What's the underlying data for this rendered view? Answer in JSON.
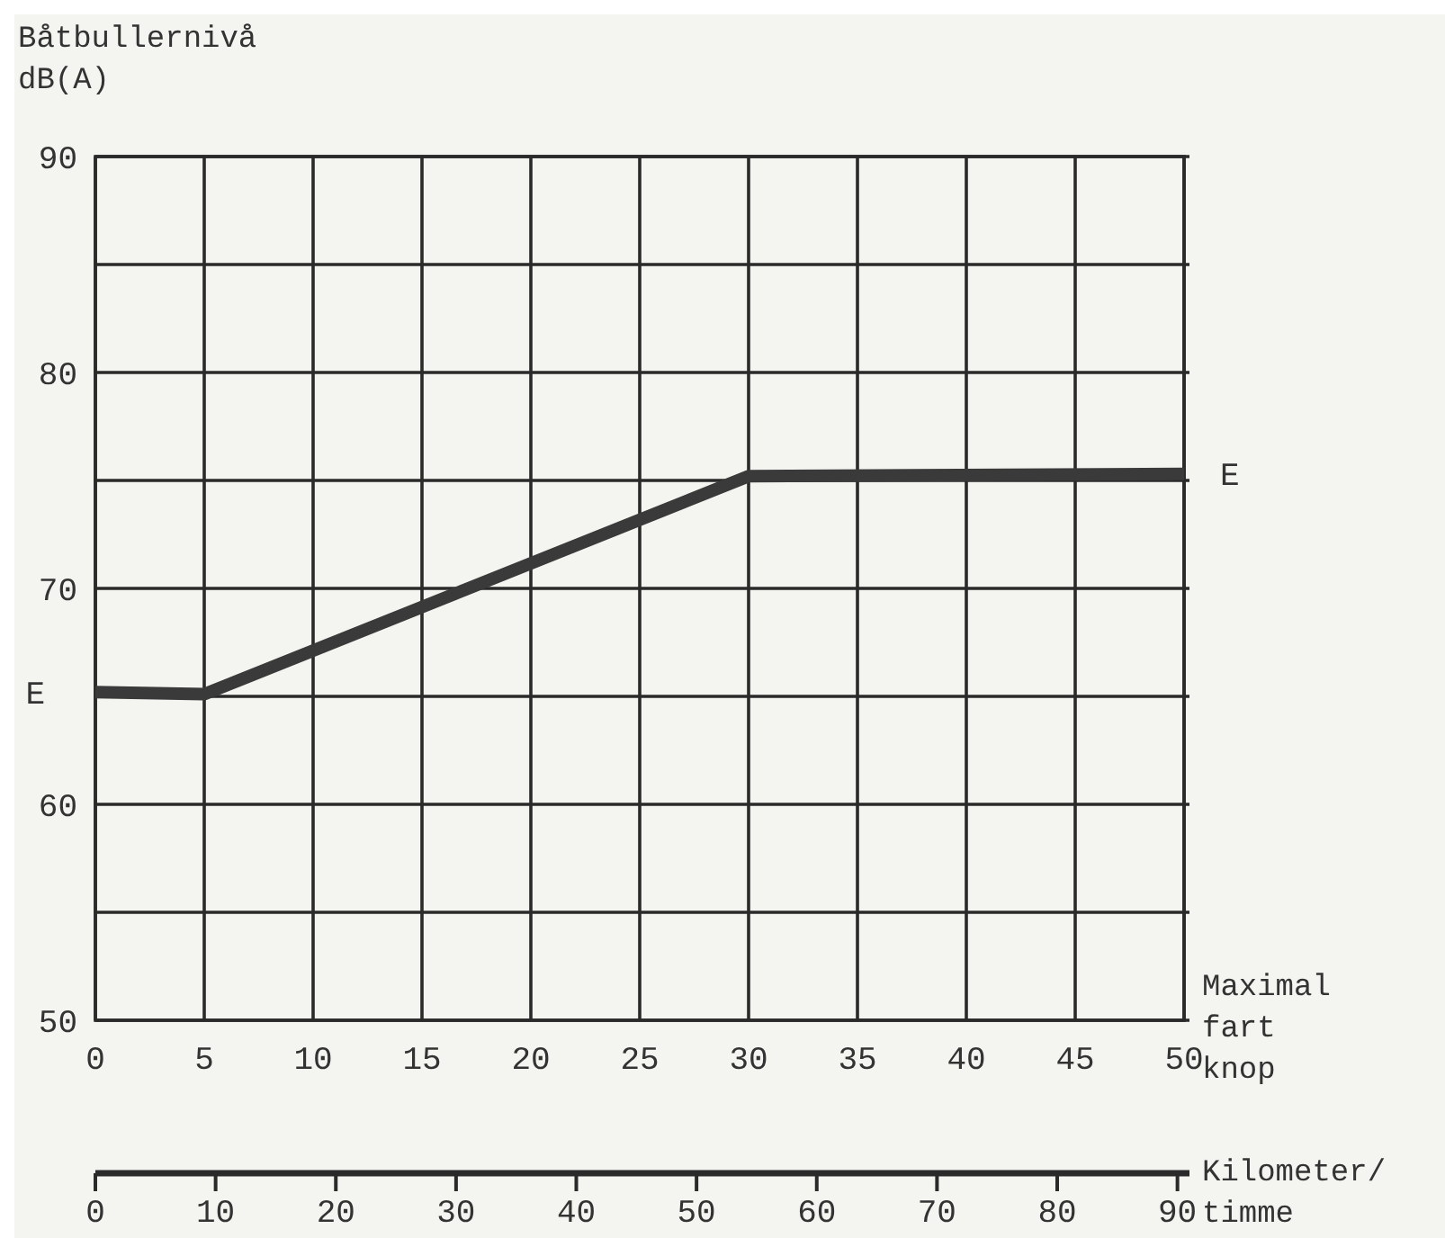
{
  "chart_data": {
    "type": "line",
    "ylabel": "Båtbullernivå dB(A)",
    "xlabel": "Maximal fart knop",
    "x2label": "Kilometer/ timme",
    "x": [
      0,
      5,
      30,
      50
    ],
    "series": [
      {
        "color": "#3a3a3a",
        "values": [
          65.2,
          65.1,
          75.2,
          75.3
        ]
      }
    ],
    "xlim": [
      0,
      50
    ],
    "xticks": [
      0,
      5,
      10,
      15,
      20,
      25,
      30,
      35,
      40,
      45,
      50
    ],
    "ylim": [
      50,
      90
    ],
    "yticks": [
      50,
      {
        "value": 55,
        "label": null
      },
      60,
      {
        "value": 65,
        "label": null
      },
      70,
      {
        "value": 75,
        "label": null
      },
      80,
      {
        "value": 85,
        "label": null
      },
      90
    ],
    "x2lim": [
      0,
      91
    ],
    "x2ticks": [
      0,
      10,
      20,
      30,
      40,
      50,
      60,
      70,
      80,
      90
    ],
    "grid": true,
    "marker": "none",
    "line_style": "solid",
    "annotations": [
      {
        "text": "E",
        "x": 0,
        "y": 65.2
      },
      {
        "text": "E",
        "x": 50,
        "y": 75.3
      }
    ]
  }
}
